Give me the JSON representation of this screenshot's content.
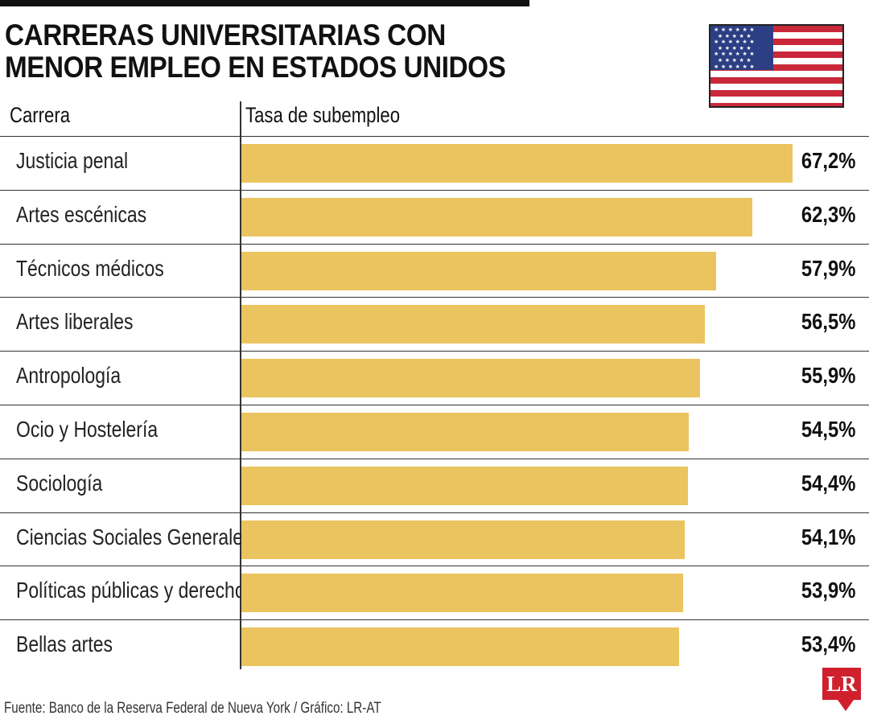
{
  "title_lines": [
    "CARRERAS UNIVERSITARIAS CON",
    "MENOR EMPLEO EN ESTADOS UNIDOS"
  ],
  "headers": {
    "category": "Carrera",
    "value": "Tasa de subempleo"
  },
  "source": "Fuente: Banco de la Reserva Federal de Nueva York / Gráfico: LR-AT",
  "logo_text": "LR",
  "colors": {
    "bar": "#eac45f",
    "logo": "#d0202e",
    "flag_red": "#c9283a",
    "flag_blue": "#2c3e84"
  },
  "icons": {
    "flag": "us-flag-icon",
    "logo": "lr-logo-icon"
  },
  "chart_data": {
    "type": "bar",
    "orientation": "horizontal",
    "title": "CARRERAS UNIVERSITARIAS CON MENOR EMPLEO EN ESTADOS UNIDOS",
    "categories": [
      "Justicia penal",
      "Artes escénicas",
      "Técnicos médicos",
      "Artes liberales",
      "Antropología",
      "Ocio y Hostelería",
      "Sociología",
      "Ciencias Sociales Generales",
      "Políticas públicas y derecho",
      "Bellas artes"
    ],
    "values": [
      67.2,
      62.3,
      57.9,
      56.5,
      55.9,
      54.5,
      54.4,
      54.1,
      53.9,
      53.4
    ],
    "value_labels": [
      "67,2%",
      "62,3%",
      "57,9%",
      "56,5%",
      "55,9%",
      "54,5%",
      "54,4%",
      "54,1%",
      "53,9%",
      "53,4%"
    ],
    "xlabel": "Tasa de subempleo",
    "ylabel": "Carrera",
    "grid": false,
    "legend": "none"
  }
}
